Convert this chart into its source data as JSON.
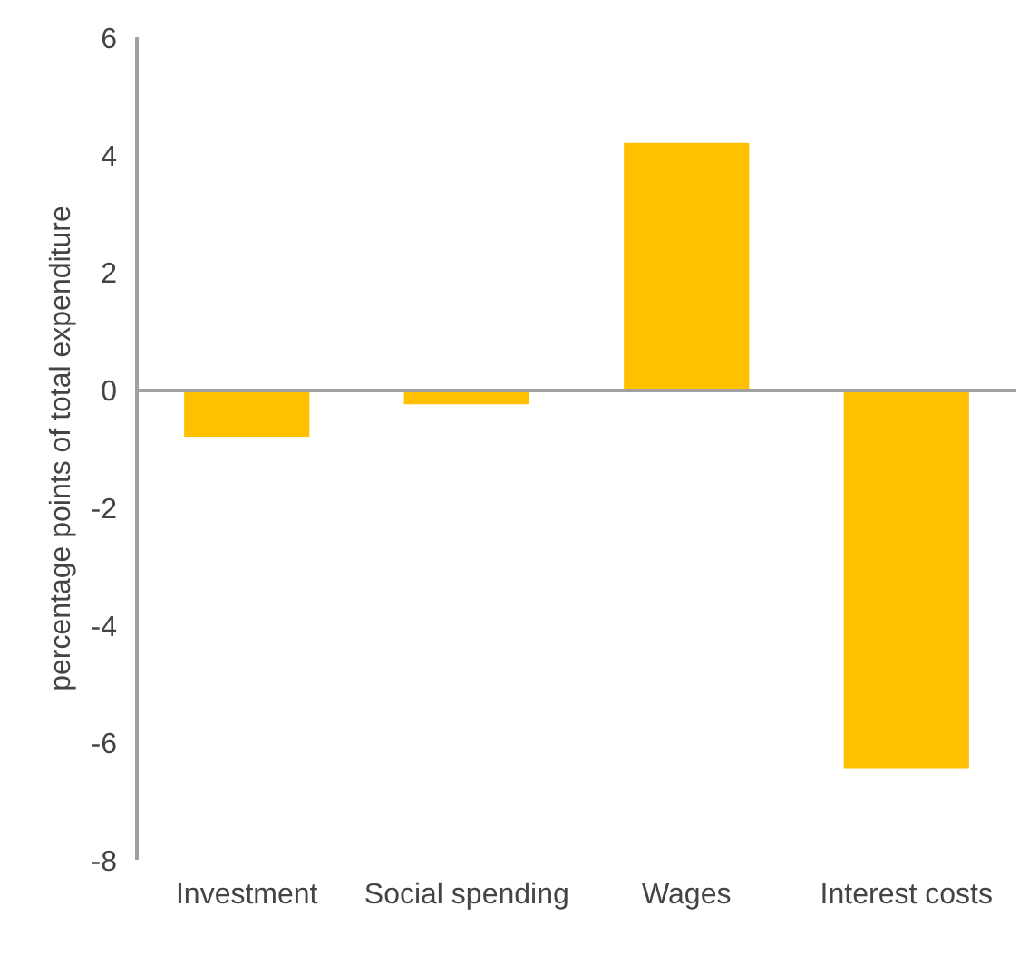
{
  "chart_data": {
    "type": "bar",
    "ylabel": "percentage points of total expenditure",
    "categories": [
      "Investment",
      "Social spending",
      "Wages",
      "Interest costs"
    ],
    "values": [
      -0.8,
      -0.25,
      4.2,
      -6.45
    ],
    "color": "#ffc000",
    "ylim": [
      -8,
      6
    ],
    "yticks": [
      -8,
      -6,
      -4,
      -2,
      0,
      2,
      4,
      6
    ]
  }
}
